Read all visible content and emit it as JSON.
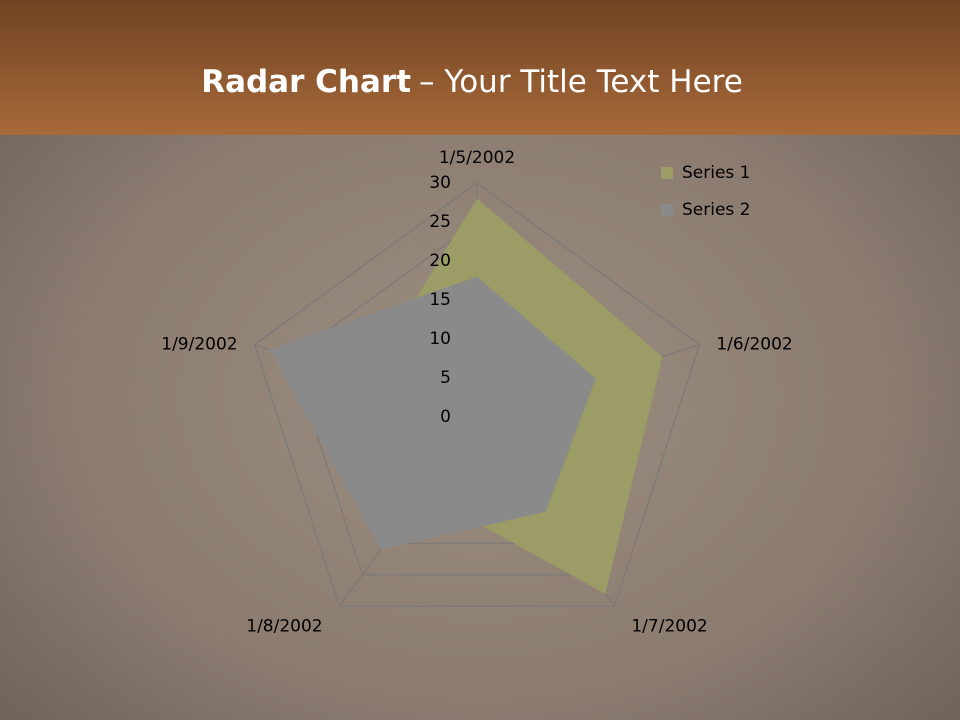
{
  "header": {
    "title_bold": "Radar Chart",
    "title_rest": "– Your Title Text Here"
  },
  "chart_data": {
    "type": "radar",
    "categories": [
      "1/5/2002",
      "1/6/2002",
      "1/7/2002",
      "1/8/2002",
      "1/9/2002"
    ],
    "series": [
      {
        "name": "Series 1",
        "color": "#9c9c66",
        "values": [
          28,
          25,
          28,
          12,
          15
        ]
      },
      {
        "name": "Series 2",
        "color": "#8a8a8a",
        "values": [
          18,
          16,
          15,
          21,
          28
        ]
      }
    ],
    "ylim": [
      0,
      30
    ],
    "yticks": [
      0,
      5,
      10,
      15,
      20,
      25,
      30
    ],
    "grid": true,
    "legend": "top-right"
  }
}
